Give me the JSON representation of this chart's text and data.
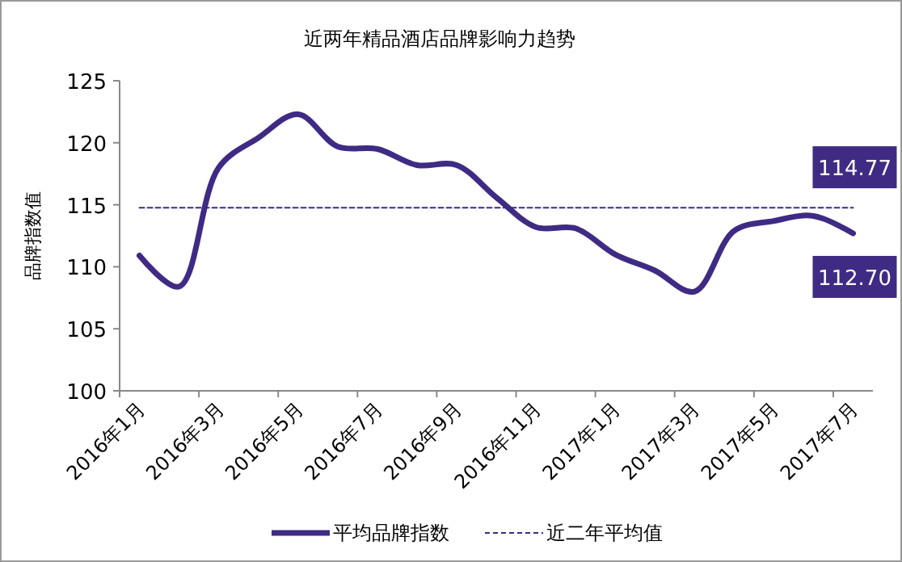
{
  "chart_data": {
    "type": "line",
    "title": "近两年精品酒店品牌影响力趋势",
    "ylabel": "品牌指数值",
    "categories": [
      "2016年1月",
      null,
      "2016年3月",
      null,
      "2016年5月",
      null,
      "2016年7月",
      null,
      "2016年9月",
      null,
      "2016年11月",
      null,
      "2017年1月",
      null,
      "2017年3月",
      null,
      "2017年5月",
      null,
      "2017年7月"
    ],
    "series": [
      {
        "name": "平均品牌指数",
        "color": "#3f2a84",
        "line_style": "solid",
        "values": [
          110.9,
          108.4,
          118.0,
          120.4,
          122.3,
          119.7,
          119.5,
          118.2,
          118.2,
          115.6,
          113.2,
          113.1,
          111.0,
          109.7,
          108.0,
          112.9,
          113.7,
          114.1,
          112.7
        ],
        "value_labels": [
          null,
          null,
          null,
          null,
          null,
          null,
          null,
          null,
          null,
          null,
          null,
          null,
          null,
          null,
          null,
          null,
          null,
          null,
          "112.70"
        ]
      },
      {
        "name": "近二年平均值",
        "color": "#3f2a84",
        "line_style": "dashed",
        "values": [
          114.77,
          114.77,
          114.77,
          114.77,
          114.77,
          114.77,
          114.77,
          114.77,
          114.77,
          114.77,
          114.77,
          114.77,
          114.77,
          114.77,
          114.77,
          114.77,
          114.77,
          114.77,
          114.77
        ],
        "value_labels": [
          null,
          null,
          null,
          null,
          null,
          null,
          null,
          null,
          null,
          null,
          null,
          null,
          null,
          null,
          null,
          null,
          null,
          null,
          "114.77"
        ]
      }
    ],
    "ylim": [
      100,
      125
    ],
    "yticks": [
      100,
      105,
      110,
      115,
      120,
      125
    ],
    "grid": false,
    "legend": "bottom"
  }
}
